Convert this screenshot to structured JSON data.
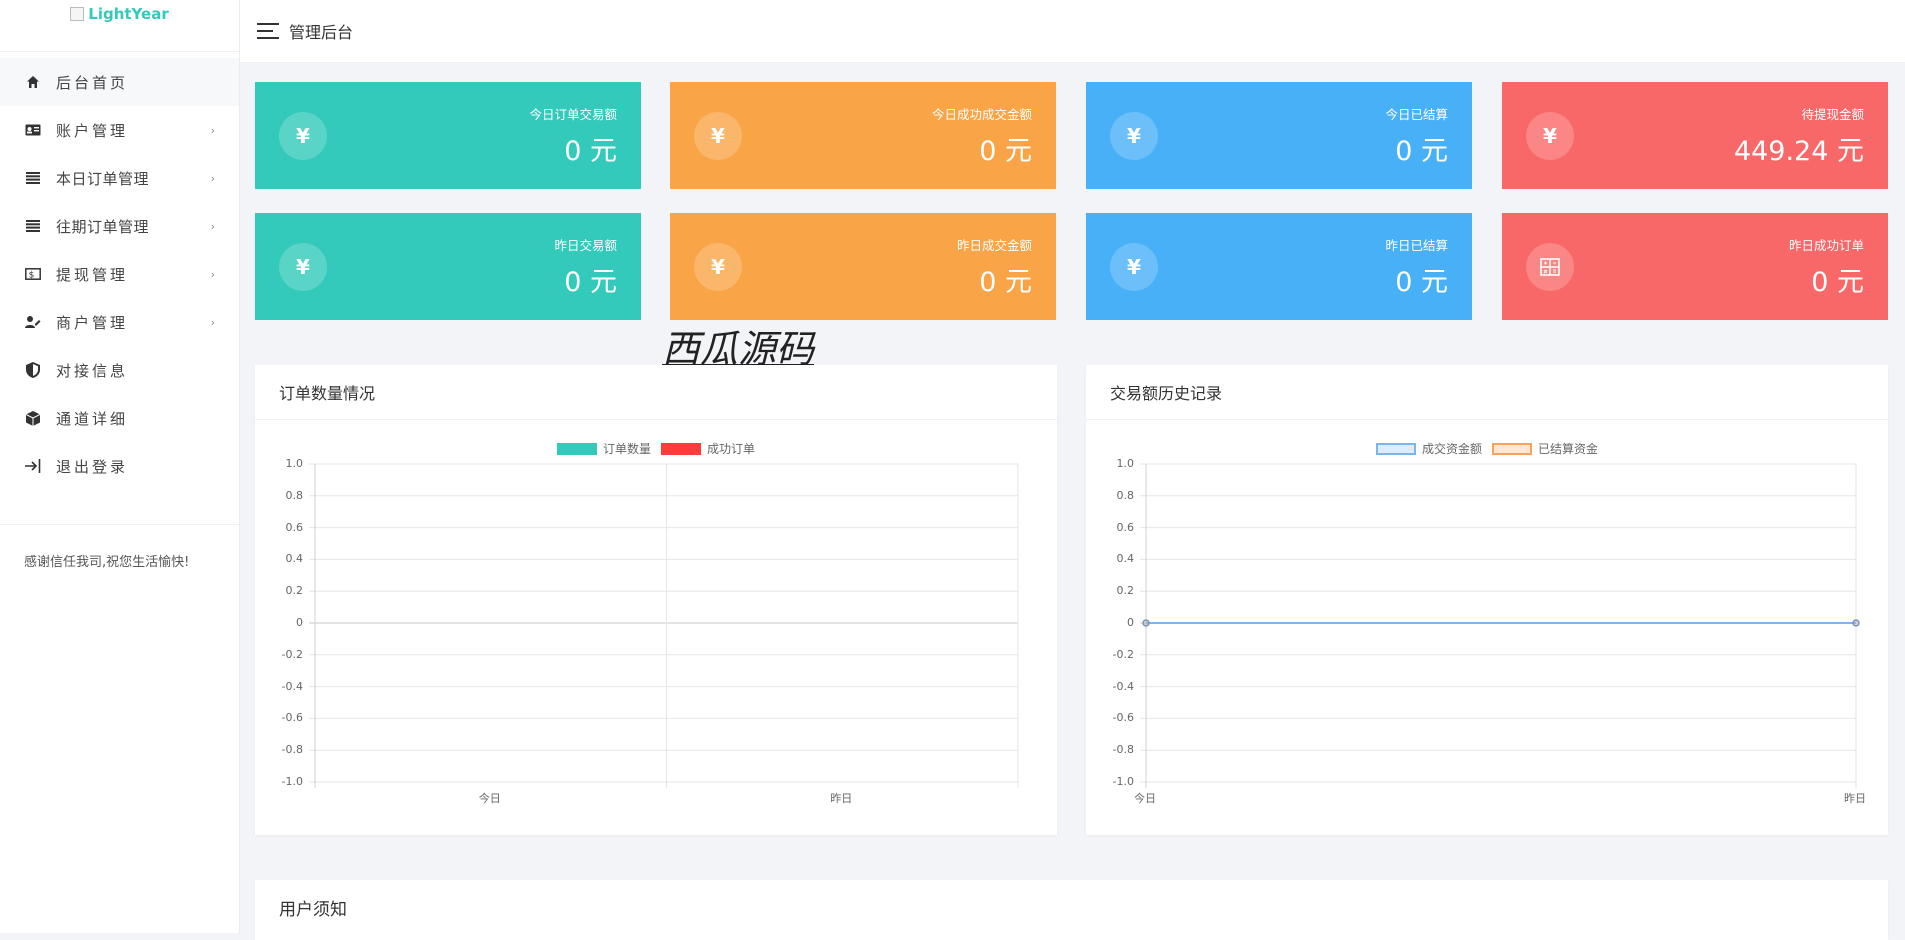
{
  "logo": {
    "alt": "LightYear"
  },
  "topbar": {
    "title": "管理后台"
  },
  "sidebar": {
    "items": [
      {
        "label": "后台首页",
        "icon": "home-icon",
        "arrow": ""
      },
      {
        "label": "账户管理",
        "icon": "id-card-icon",
        "arrow": "›"
      },
      {
        "label": "本日订单管理",
        "icon": "list-icon",
        "arrow": "›"
      },
      {
        "label": "往期订单管理",
        "icon": "list-icon",
        "arrow": "›"
      },
      {
        "label": "提现管理",
        "icon": "cash-icon",
        "arrow": "›"
      },
      {
        "label": "商户管理",
        "icon": "user-edit-icon",
        "arrow": "›"
      },
      {
        "label": "对接信息",
        "icon": "shield-icon",
        "arrow": ""
      },
      {
        "label": "通道详细",
        "icon": "cube-icon",
        "arrow": ""
      },
      {
        "label": "退出登录",
        "icon": "logout-icon",
        "arrow": ""
      }
    ],
    "footer": "感谢信任我司,祝您生活愉快!"
  },
  "cards": [
    {
      "label": "今日订单交易额",
      "value": "0 元",
      "icon": "¥",
      "color": "#33cabb"
    },
    {
      "label": "今日成功成交金额",
      "value": "0 元",
      "icon": "¥",
      "color": "#f9a447"
    },
    {
      "label": "今日已结算",
      "value": "0 元",
      "icon": "¥",
      "color": "#48b0f7"
    },
    {
      "label": "待提现金额",
      "value": "449.24 元",
      "icon": "¥",
      "color": "#f96868"
    },
    {
      "label": "昨日交易额",
      "value": "0 元",
      "icon": "¥",
      "color": "#33cabb"
    },
    {
      "label": "昨日成交金额",
      "value": "0 元",
      "icon": "¥",
      "color": "#f9a447"
    },
    {
      "label": "昨日已结算",
      "value": "0 元",
      "icon": "¥",
      "color": "#48b0f7"
    },
    {
      "label": "昨日成功订单",
      "value": "0 元",
      "icon": "calculator-icon",
      "color": "#f96868"
    }
  ],
  "watermark": "西瓜源码",
  "panels": {
    "orders": {
      "title": "订单数量情况"
    },
    "history": {
      "title": "交易额历史记录"
    },
    "notice": {
      "title": "用户须知"
    }
  },
  "chart_data": [
    {
      "type": "bar",
      "title": "订单数量情况",
      "categories": [
        "今日",
        "昨日"
      ],
      "series": [
        {
          "name": "订单数量",
          "values": [
            0,
            0
          ],
          "color": "#33cabb"
        },
        {
          "name": "成功订单",
          "values": [
            0,
            0
          ],
          "color": "#ff3b3b"
        }
      ],
      "ylim": [
        -1.0,
        1.0
      ],
      "yticks": [
        "1.0",
        "0.8",
        "0.6",
        "0.4",
        "0.2",
        "0",
        "-0.2",
        "-0.4",
        "-0.6",
        "-0.8",
        "-1.0"
      ],
      "grid": true,
      "legend": "top-center"
    },
    {
      "type": "line",
      "title": "交易额历史记录",
      "categories": [
        "今日",
        "昨日"
      ],
      "series": [
        {
          "name": "成交资金额",
          "values": [
            0,
            0
          ],
          "color": "#7cb5ec"
        },
        {
          "name": "已结算资金",
          "values": [
            0,
            0
          ],
          "color": "#f7a35c"
        }
      ],
      "ylim": [
        -1.0,
        1.0
      ],
      "yticks": [
        "1.0",
        "0.8",
        "0.6",
        "0.4",
        "0.2",
        "0",
        "-0.2",
        "-0.4",
        "-0.6",
        "-0.8",
        "-1.0"
      ],
      "grid": true,
      "legend": "top-center"
    }
  ]
}
